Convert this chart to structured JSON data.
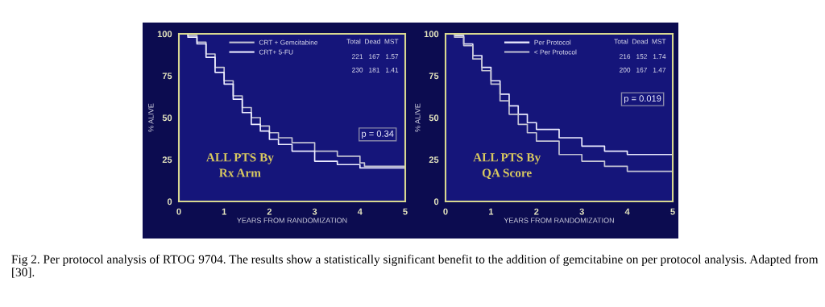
{
  "chart_data": [
    {
      "type": "step",
      "xlabel": "YEARS FROM RANDOMIZATION",
      "ylabel": "% ALIVE",
      "xlim": [
        0,
        5
      ],
      "xticks": [
        0,
        1,
        2,
        3,
        4,
        5
      ],
      "ylim": [
        0,
        100
      ],
      "yticks": [
        0,
        25,
        50,
        75,
        100
      ],
      "legend": "top",
      "grid": false,
      "annotations": [
        "Total  Dead  MST",
        "221   167   1.57",
        "230   181   1.41",
        "p = 0.34",
        "ALL PTS By\nRx Arm"
      ],
      "series": [
        {
          "name": "CRT + Gemcitabine",
          "color": "#c4c4d4",
          "x": [
            0,
            0.2,
            0.4,
            0.6,
            0.8,
            1.0,
            1.2,
            1.4,
            1.6,
            1.8,
            2.0,
            2.2,
            2.5,
            3.0,
            3.5,
            4.0,
            4.1,
            4.5,
            5.0
          ],
          "values": [
            100,
            99,
            95,
            88,
            80,
            72,
            63,
            56,
            50,
            45,
            41,
            38,
            35,
            30,
            27,
            23,
            21,
            21,
            19
          ]
        },
        {
          "name": "CRT+ 5-FU",
          "color": "#ececff",
          "x": [
            0,
            0.2,
            0.4,
            0.6,
            0.8,
            1.0,
            1.2,
            1.4,
            1.6,
            1.8,
            2.0,
            2.2,
            2.5,
            3.0,
            3.5,
            4.0,
            4.5,
            4.7,
            5.0
          ],
          "values": [
            100,
            98,
            94,
            86,
            77,
            70,
            61,
            53,
            46,
            42,
            37,
            34,
            30,
            24,
            22,
            20,
            20,
            20,
            20
          ]
        }
      ]
    },
    {
      "type": "step",
      "xlabel": "YEARS FROM RANDOMIZATION",
      "ylabel": "% ALIVE",
      "xlim": [
        0,
        5
      ],
      "xticks": [
        0,
        1,
        2,
        3,
        4,
        5
      ],
      "ylim": [
        0,
        100
      ],
      "yticks": [
        0,
        25,
        50,
        75,
        100
      ],
      "legend": "top",
      "grid": false,
      "annotations": [
        "Total  Dead  MST",
        "216   152   1.74",
        "200   167   1.47",
        "p = 0.019",
        "ALL PTS By\nQA Score",
        "Fig 2. Per protocol analysis of RTOG 9704. The results show a statistically significant benefit to the addition of gemcitabine on per protocol analysis. Adapted from [30]."
      ],
      "series": [
        {
          "name": "Per Protocol",
          "color": "#ececff",
          "x": [
            0,
            0.2,
            0.4,
            0.6,
            0.8,
            1.0,
            1.2,
            1.4,
            1.6,
            1.8,
            2.0,
            2.5,
            3.0,
            3.5,
            4.0,
            5.0
          ],
          "values": [
            100,
            99,
            94,
            87,
            80,
            72,
            64,
            57,
            52,
            47,
            43,
            38,
            33,
            30,
            28,
            28
          ]
        },
        {
          "name": "< Per Protocol",
          "color": "#c4c4d4",
          "x": [
            0,
            0.2,
            0.4,
            0.6,
            0.8,
            1.0,
            1.2,
            1.4,
            1.6,
            1.8,
            2.0,
            2.5,
            3.0,
            3.5,
            4.0,
            4.5,
            5.0
          ],
          "values": [
            100,
            98,
            93,
            85,
            78,
            70,
            60,
            52,
            46,
            41,
            36,
            28,
            24,
            21,
            18,
            18,
            16
          ]
        }
      ]
    }
  ]
}
